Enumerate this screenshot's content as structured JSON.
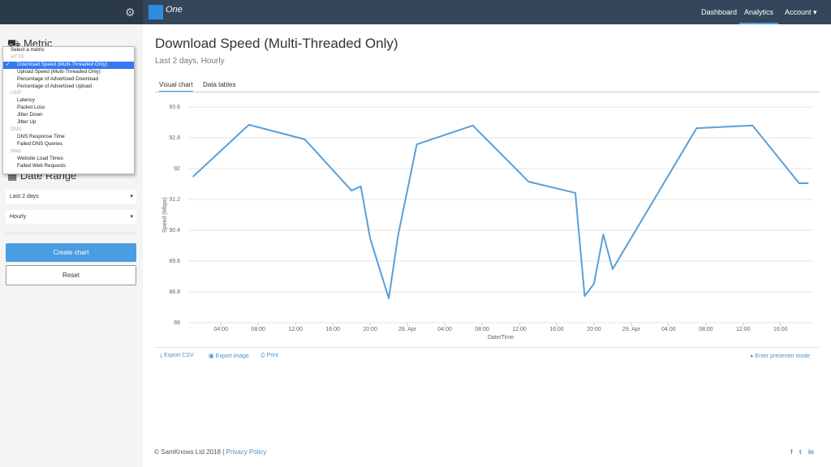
{
  "nav": {
    "logo": "One",
    "items": [
      "Dashboard",
      "Analytics",
      "Account"
    ],
    "active": 1
  },
  "sidebar": {
    "metric_heading": "Metric",
    "dropdown": {
      "placeholder": "Select a metric",
      "groups": [
        {
          "label": "HTTP",
          "items": [
            "Download Speed (Multi-Threaded Only)",
            "Upload Speed (Multi-Threaded Only)",
            "Percentage of Advertised Download",
            "Percentage of Advertised Upload"
          ]
        },
        {
          "label": "UDP",
          "items": [
            "Latency",
            "Packet Loss",
            "Jitter Down",
            "Jitter Up"
          ]
        },
        {
          "label": "DNS",
          "items": [
            "DNS Response Time",
            "Failed DNS Queries"
          ]
        },
        {
          "label": "Web",
          "items": [
            "Website Load Times",
            "Failed Web Requests"
          ]
        }
      ]
    },
    "date_heading": "Date Range",
    "range": "Last 2 days",
    "interval": "Hourly",
    "create": "Create chart",
    "reset": "Reset"
  },
  "main": {
    "title": "Download Speed (Multi-Threaded Only)",
    "subtitle": "Last 2 days, Hourly",
    "tabs": [
      "Visual chart",
      "Data tables"
    ],
    "actions": [
      "Export CSV",
      "Export image",
      "Print"
    ],
    "presenter": "Enter presenter mode"
  },
  "footer": {
    "copyright": "© SamKnows Ltd 2018 |",
    "link": "Privacy Policy",
    "social": [
      "f",
      "t",
      "in"
    ]
  },
  "chart_data": {
    "type": "line",
    "y_label": "Speed (Mbps)",
    "x_label": "Date/Time",
    "x": [
      1,
      7,
      13,
      18,
      19,
      20,
      22,
      23,
      25,
      31,
      37,
      42,
      43,
      44,
      45,
      46,
      55,
      61,
      66,
      67
    ],
    "series": [
      {
        "name": "Download Speed",
        "color": "#5b9fd6",
        "values": [
          91.79,
          93.14,
          92.76,
          91.43,
          91.54,
          90.19,
          88.63,
          90.27,
          92.63,
          93.12,
          91.66,
          91.37,
          88.69,
          89.01,
          90.29,
          89.39,
          93.05,
          93.12,
          91.62,
          91.62
        ]
      }
    ],
    "xlim": [
      0.5,
      67.5
    ],
    "xticks": [
      {
        "value": 4,
        "label": "04:00"
      },
      {
        "value": 8,
        "label": "08:00"
      },
      {
        "value": 12,
        "label": "12:00"
      },
      {
        "value": 16,
        "label": "16:00"
      },
      {
        "value": 20,
        "label": "20:00"
      },
      {
        "value": 24,
        "label": "28. Apr"
      },
      {
        "value": 28,
        "label": "04:00"
      },
      {
        "value": 32,
        "label": "08:00"
      },
      {
        "value": 36,
        "label": "12:00"
      },
      {
        "value": 40,
        "label": "16:00"
      },
      {
        "value": 44,
        "label": "20:00"
      },
      {
        "value": 48,
        "label": "29. Apr"
      },
      {
        "value": 52,
        "label": "04:00"
      },
      {
        "value": 56,
        "label": "08:00"
      },
      {
        "value": 60,
        "label": "12:00"
      },
      {
        "value": 64,
        "label": "16:00"
      }
    ],
    "ylim": [
      88,
      93.6
    ],
    "yticks": [
      88,
      88.8,
      89.6,
      90.4,
      91.2,
      92,
      92.8,
      93.6
    ],
    "grid": true
  }
}
